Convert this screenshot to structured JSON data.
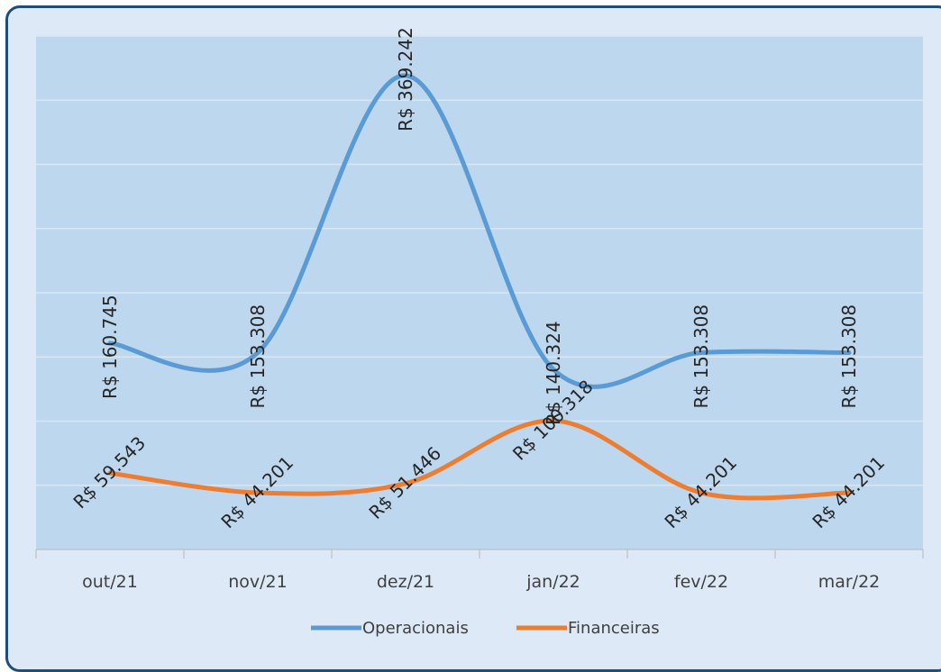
{
  "chart_data": {
    "type": "line",
    "categories": [
      "out/21",
      "nov/21",
      "dez/21",
      "jan/22",
      "fev/22",
      "mar/22"
    ],
    "series": [
      {
        "name": "Operacionais",
        "color": "#5b9bd5",
        "values": [
          160745,
          153308,
          369242,
          140324,
          153308,
          153308
        ],
        "labels": [
          "R$ 160.745",
          "R$ 153.308",
          "R$ 369.242",
          "R$ 140.324",
          "R$ 153.308",
          "R$ 153.308"
        ]
      },
      {
        "name": "Financeiras",
        "color": "#ed7d31",
        "values": [
          59543,
          44201,
          51446,
          100318,
          44201,
          44201
        ],
        "labels": [
          "R$ 59.543",
          "R$ 44.201",
          "R$ 51.446",
          "R$ 100.318",
          "R$ 44.201",
          "R$ 44.201"
        ]
      }
    ],
    "ylim": [
      0,
      400000
    ],
    "grid": true,
    "legend_position": "bottom",
    "plot_background": "#bdd7ee",
    "frame_background": "#dde9f6",
    "frame_border": "#1f4e79",
    "title": "",
    "xlabel": "",
    "ylabel": ""
  }
}
